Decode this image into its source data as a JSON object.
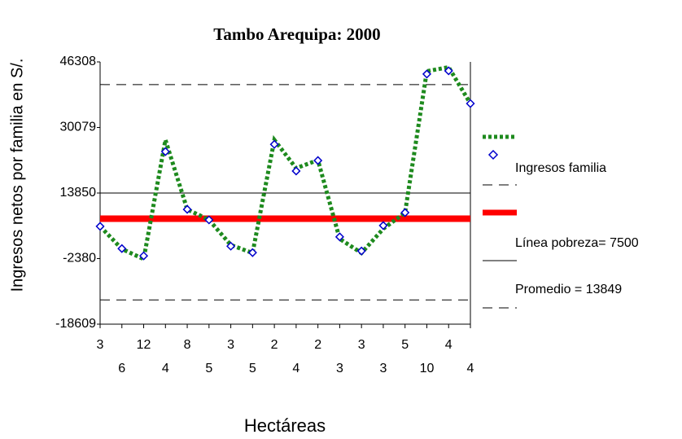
{
  "chart_data": {
    "type": "line",
    "title": "Tambo Arequipa: 2000",
    "x_label": "Hectáreas",
    "y_label": "Ingresos netos por familia en S/.",
    "categories": [
      "3",
      "6",
      "12",
      "4",
      "8",
      "5",
      "3",
      "5",
      "2",
      "4",
      "2",
      "3",
      "3",
      "3",
      "5",
      "10",
      "4",
      "4"
    ],
    "series": [
      {
        "color": "#1e8a1e",
        "style": "dotted",
        "values": [
          5600,
          0,
          -2500,
          27000,
          9800,
          7200,
          1000,
          -1000,
          27000,
          20000,
          22000,
          2500,
          -1000,
          5000,
          9000,
          44000,
          45000,
          36000
        ]
      },
      {
        "name": "Ingresos familia",
        "color": "#0000cc",
        "style": "diamond",
        "values": [
          5600,
          100,
          -1700,
          24100,
          9800,
          7200,
          700,
          -900,
          25900,
          19300,
          21900,
          3000,
          -500,
          5800,
          9000,
          43300,
          44100,
          36000
        ]
      }
    ],
    "reference_lines": [
      {
        "label": "Línea pobreza= 7500",
        "value": 7500,
        "color": "#ff0000"
      },
      {
        "label": "Promedio = 13849",
        "value": 13849,
        "color": "#000000"
      }
    ],
    "control_limits": [
      40700,
      -12600
    ],
    "ylim": [
      -18609,
      46308
    ],
    "yticks": [
      -18609,
      -2380,
      13850,
      30079,
      46308
    ]
  }
}
